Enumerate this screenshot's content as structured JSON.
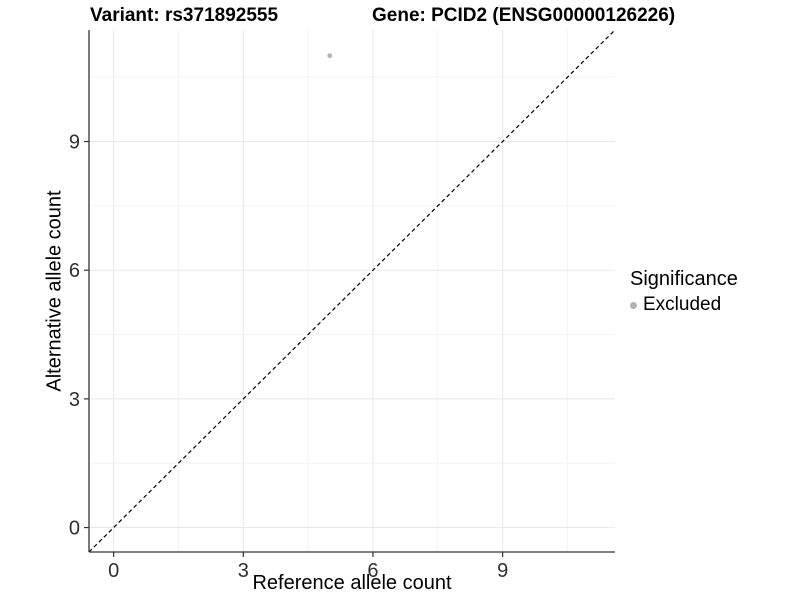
{
  "colors": {
    "background": "#ffffff",
    "axis_line": "#333333",
    "tick_mark": "#333333",
    "tick_label": "#303030",
    "grid_major": "#e8e8e8",
    "grid_minor": "#f4f4f4",
    "reference_line": "#000000",
    "point": "#b3b3b3"
  },
  "chart_data": {
    "type": "scatter",
    "title": "Variant: rs371892555",
    "title_right": "Gene: PCID2 (ENSG00000126226)",
    "xlabel": "Reference allele count",
    "ylabel": "Alternative allele count",
    "xlim": [
      -0.57,
      11.6
    ],
    "ylim": [
      -0.57,
      11.6
    ],
    "x_ticks": [
      0,
      3,
      6,
      9
    ],
    "y_ticks": [
      0,
      3,
      6,
      9
    ],
    "x_minor_ticks": [
      1.5,
      4.5,
      7.5,
      10.5
    ],
    "y_minor_ticks": [
      1.5,
      4.5,
      7.5,
      10.5
    ],
    "grid": true,
    "series": [
      {
        "name": "Excluded",
        "color": "#b3b3b3",
        "points": [
          {
            "x": 5,
            "y": 11
          }
        ]
      }
    ],
    "reference_line": {
      "type": "diagonal",
      "style": "dashed",
      "equation": "y = x",
      "color": "#000000"
    },
    "legend": {
      "title": "Significance",
      "position": "right",
      "entries": [
        {
          "label": "Excluded",
          "color": "#b3b3b3",
          "marker": "dot-icon"
        }
      ]
    }
  }
}
